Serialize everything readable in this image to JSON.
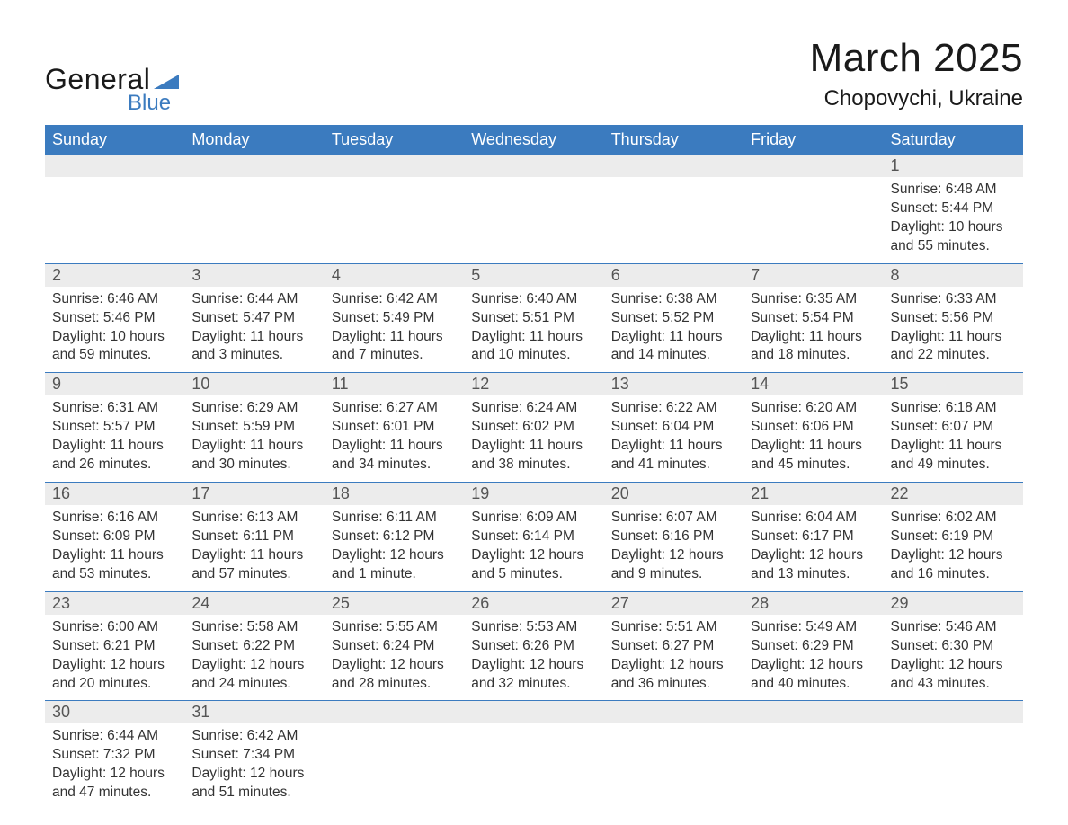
{
  "logo": {
    "text1": "General",
    "text2": "Blue",
    "triangle_color": "#3b7bbf"
  },
  "header": {
    "month": "March 2025",
    "location": "Chopovychi, Ukraine"
  },
  "calendar": {
    "header_bg": "#3b7bbf",
    "header_fg": "#ffffff",
    "daynum_bg": "#ececec",
    "border_color": "#3b7bbf",
    "text_color": "#333333",
    "daynum_color": "#555555",
    "font_size_header": 18,
    "font_size_daynum": 18,
    "font_size_cell": 15.5,
    "days_of_week": [
      "Sunday",
      "Monday",
      "Tuesday",
      "Wednesday",
      "Thursday",
      "Friday",
      "Saturday"
    ],
    "weeks": [
      [
        null,
        null,
        null,
        null,
        null,
        null,
        {
          "n": "1",
          "sunrise": "6:48 AM",
          "sunset": "5:44 PM",
          "daylight": "10 hours and 55 minutes."
        }
      ],
      [
        {
          "n": "2",
          "sunrise": "6:46 AM",
          "sunset": "5:46 PM",
          "daylight": "10 hours and 59 minutes."
        },
        {
          "n": "3",
          "sunrise": "6:44 AM",
          "sunset": "5:47 PM",
          "daylight": "11 hours and 3 minutes."
        },
        {
          "n": "4",
          "sunrise": "6:42 AM",
          "sunset": "5:49 PM",
          "daylight": "11 hours and 7 minutes."
        },
        {
          "n": "5",
          "sunrise": "6:40 AM",
          "sunset": "5:51 PM",
          "daylight": "11 hours and 10 minutes."
        },
        {
          "n": "6",
          "sunrise": "6:38 AM",
          "sunset": "5:52 PM",
          "daylight": "11 hours and 14 minutes."
        },
        {
          "n": "7",
          "sunrise": "6:35 AM",
          "sunset": "5:54 PM",
          "daylight": "11 hours and 18 minutes."
        },
        {
          "n": "8",
          "sunrise": "6:33 AM",
          "sunset": "5:56 PM",
          "daylight": "11 hours and 22 minutes."
        }
      ],
      [
        {
          "n": "9",
          "sunrise": "6:31 AM",
          "sunset": "5:57 PM",
          "daylight": "11 hours and 26 minutes."
        },
        {
          "n": "10",
          "sunrise": "6:29 AM",
          "sunset": "5:59 PM",
          "daylight": "11 hours and 30 minutes."
        },
        {
          "n": "11",
          "sunrise": "6:27 AM",
          "sunset": "6:01 PM",
          "daylight": "11 hours and 34 minutes."
        },
        {
          "n": "12",
          "sunrise": "6:24 AM",
          "sunset": "6:02 PM",
          "daylight": "11 hours and 38 minutes."
        },
        {
          "n": "13",
          "sunrise": "6:22 AM",
          "sunset": "6:04 PM",
          "daylight": "11 hours and 41 minutes."
        },
        {
          "n": "14",
          "sunrise": "6:20 AM",
          "sunset": "6:06 PM",
          "daylight": "11 hours and 45 minutes."
        },
        {
          "n": "15",
          "sunrise": "6:18 AM",
          "sunset": "6:07 PM",
          "daylight": "11 hours and 49 minutes."
        }
      ],
      [
        {
          "n": "16",
          "sunrise": "6:16 AM",
          "sunset": "6:09 PM",
          "daylight": "11 hours and 53 minutes."
        },
        {
          "n": "17",
          "sunrise": "6:13 AM",
          "sunset": "6:11 PM",
          "daylight": "11 hours and 57 minutes."
        },
        {
          "n": "18",
          "sunrise": "6:11 AM",
          "sunset": "6:12 PM",
          "daylight": "12 hours and 1 minute."
        },
        {
          "n": "19",
          "sunrise": "6:09 AM",
          "sunset": "6:14 PM",
          "daylight": "12 hours and 5 minutes."
        },
        {
          "n": "20",
          "sunrise": "6:07 AM",
          "sunset": "6:16 PM",
          "daylight": "12 hours and 9 minutes."
        },
        {
          "n": "21",
          "sunrise": "6:04 AM",
          "sunset": "6:17 PM",
          "daylight": "12 hours and 13 minutes."
        },
        {
          "n": "22",
          "sunrise": "6:02 AM",
          "sunset": "6:19 PM",
          "daylight": "12 hours and 16 minutes."
        }
      ],
      [
        {
          "n": "23",
          "sunrise": "6:00 AM",
          "sunset": "6:21 PM",
          "daylight": "12 hours and 20 minutes."
        },
        {
          "n": "24",
          "sunrise": "5:58 AM",
          "sunset": "6:22 PM",
          "daylight": "12 hours and 24 minutes."
        },
        {
          "n": "25",
          "sunrise": "5:55 AM",
          "sunset": "6:24 PM",
          "daylight": "12 hours and 28 minutes."
        },
        {
          "n": "26",
          "sunrise": "5:53 AM",
          "sunset": "6:26 PM",
          "daylight": "12 hours and 32 minutes."
        },
        {
          "n": "27",
          "sunrise": "5:51 AM",
          "sunset": "6:27 PM",
          "daylight": "12 hours and 36 minutes."
        },
        {
          "n": "28",
          "sunrise": "5:49 AM",
          "sunset": "6:29 PM",
          "daylight": "12 hours and 40 minutes."
        },
        {
          "n": "29",
          "sunrise": "5:46 AM",
          "sunset": "6:30 PM",
          "daylight": "12 hours and 43 minutes."
        }
      ],
      [
        {
          "n": "30",
          "sunrise": "6:44 AM",
          "sunset": "7:32 PM",
          "daylight": "12 hours and 47 minutes."
        },
        {
          "n": "31",
          "sunrise": "6:42 AM",
          "sunset": "7:34 PM",
          "daylight": "12 hours and 51 minutes."
        },
        null,
        null,
        null,
        null,
        null
      ]
    ],
    "labels": {
      "sunrise": "Sunrise: ",
      "sunset": "Sunset: ",
      "daylight": "Daylight: "
    }
  }
}
